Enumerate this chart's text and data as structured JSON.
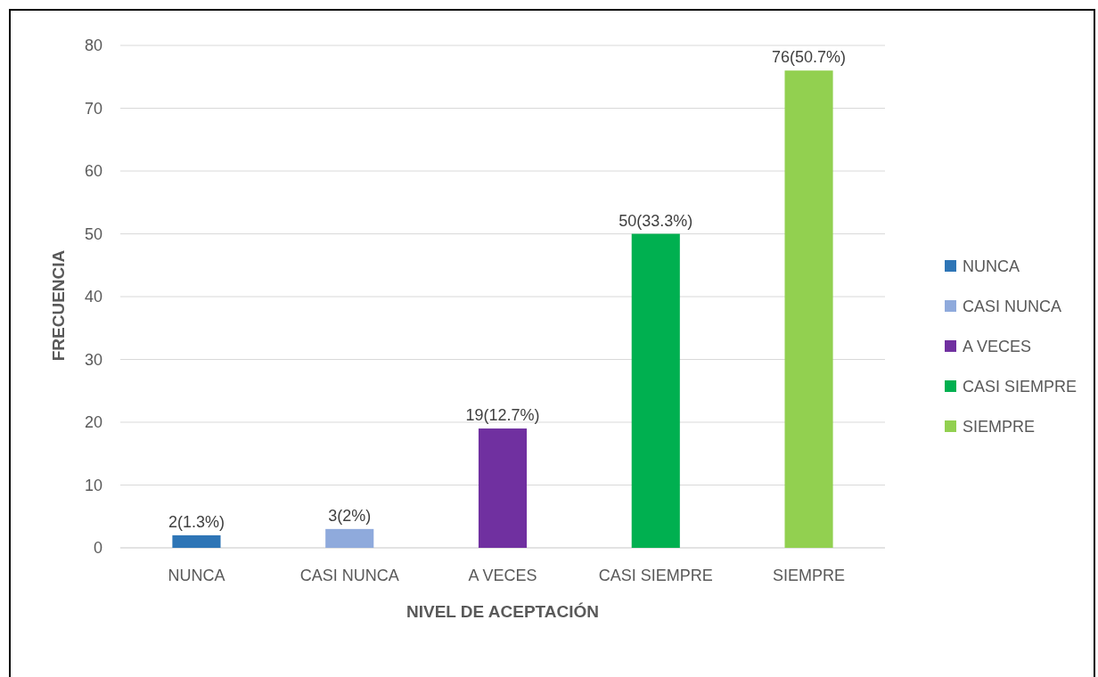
{
  "chart_data": {
    "type": "bar",
    "xlabel": "NIVEL DE ACEPTACIÓN",
    "ylabel": "FRECUENCIA",
    "categories": [
      "NUNCA",
      "CASI NUNCA",
      "A VECES",
      "CASI SIEMPRE",
      "SIEMPRE"
    ],
    "series": [
      {
        "name": "NUNCA",
        "color": "#2e75b6",
        "values": [
          2,
          null,
          null,
          null,
          null
        ],
        "value_labels": [
          "2(1.3%)",
          null,
          null,
          null,
          null
        ]
      },
      {
        "name": "CASI NUNCA",
        "color": "#8faadc",
        "values": [
          null,
          3,
          null,
          null,
          null
        ],
        "value_labels": [
          null,
          "3(2%)",
          null,
          null,
          null
        ]
      },
      {
        "name": "A VECES",
        "color": "#7030a0",
        "values": [
          null,
          null,
          19,
          null,
          null
        ],
        "value_labels": [
          null,
          null,
          "19(12.7%)",
          null,
          null
        ]
      },
      {
        "name": "CASI SIEMPRE",
        "color": "#00b050",
        "values": [
          null,
          null,
          null,
          50,
          null
        ],
        "value_labels": [
          null,
          null,
          null,
          "50(33.3%)",
          null
        ]
      },
      {
        "name": "SIEMPRE",
        "color": "#92d050",
        "values": [
          null,
          null,
          null,
          null,
          76
        ],
        "value_labels": [
          null,
          null,
          null,
          null,
          "76(50.7%)"
        ]
      }
    ],
    "ylim": [
      0,
      80
    ],
    "yticks": [
      0,
      10,
      20,
      30,
      40,
      50,
      60,
      70,
      80
    ],
    "grid": "y",
    "legend": "right"
  }
}
